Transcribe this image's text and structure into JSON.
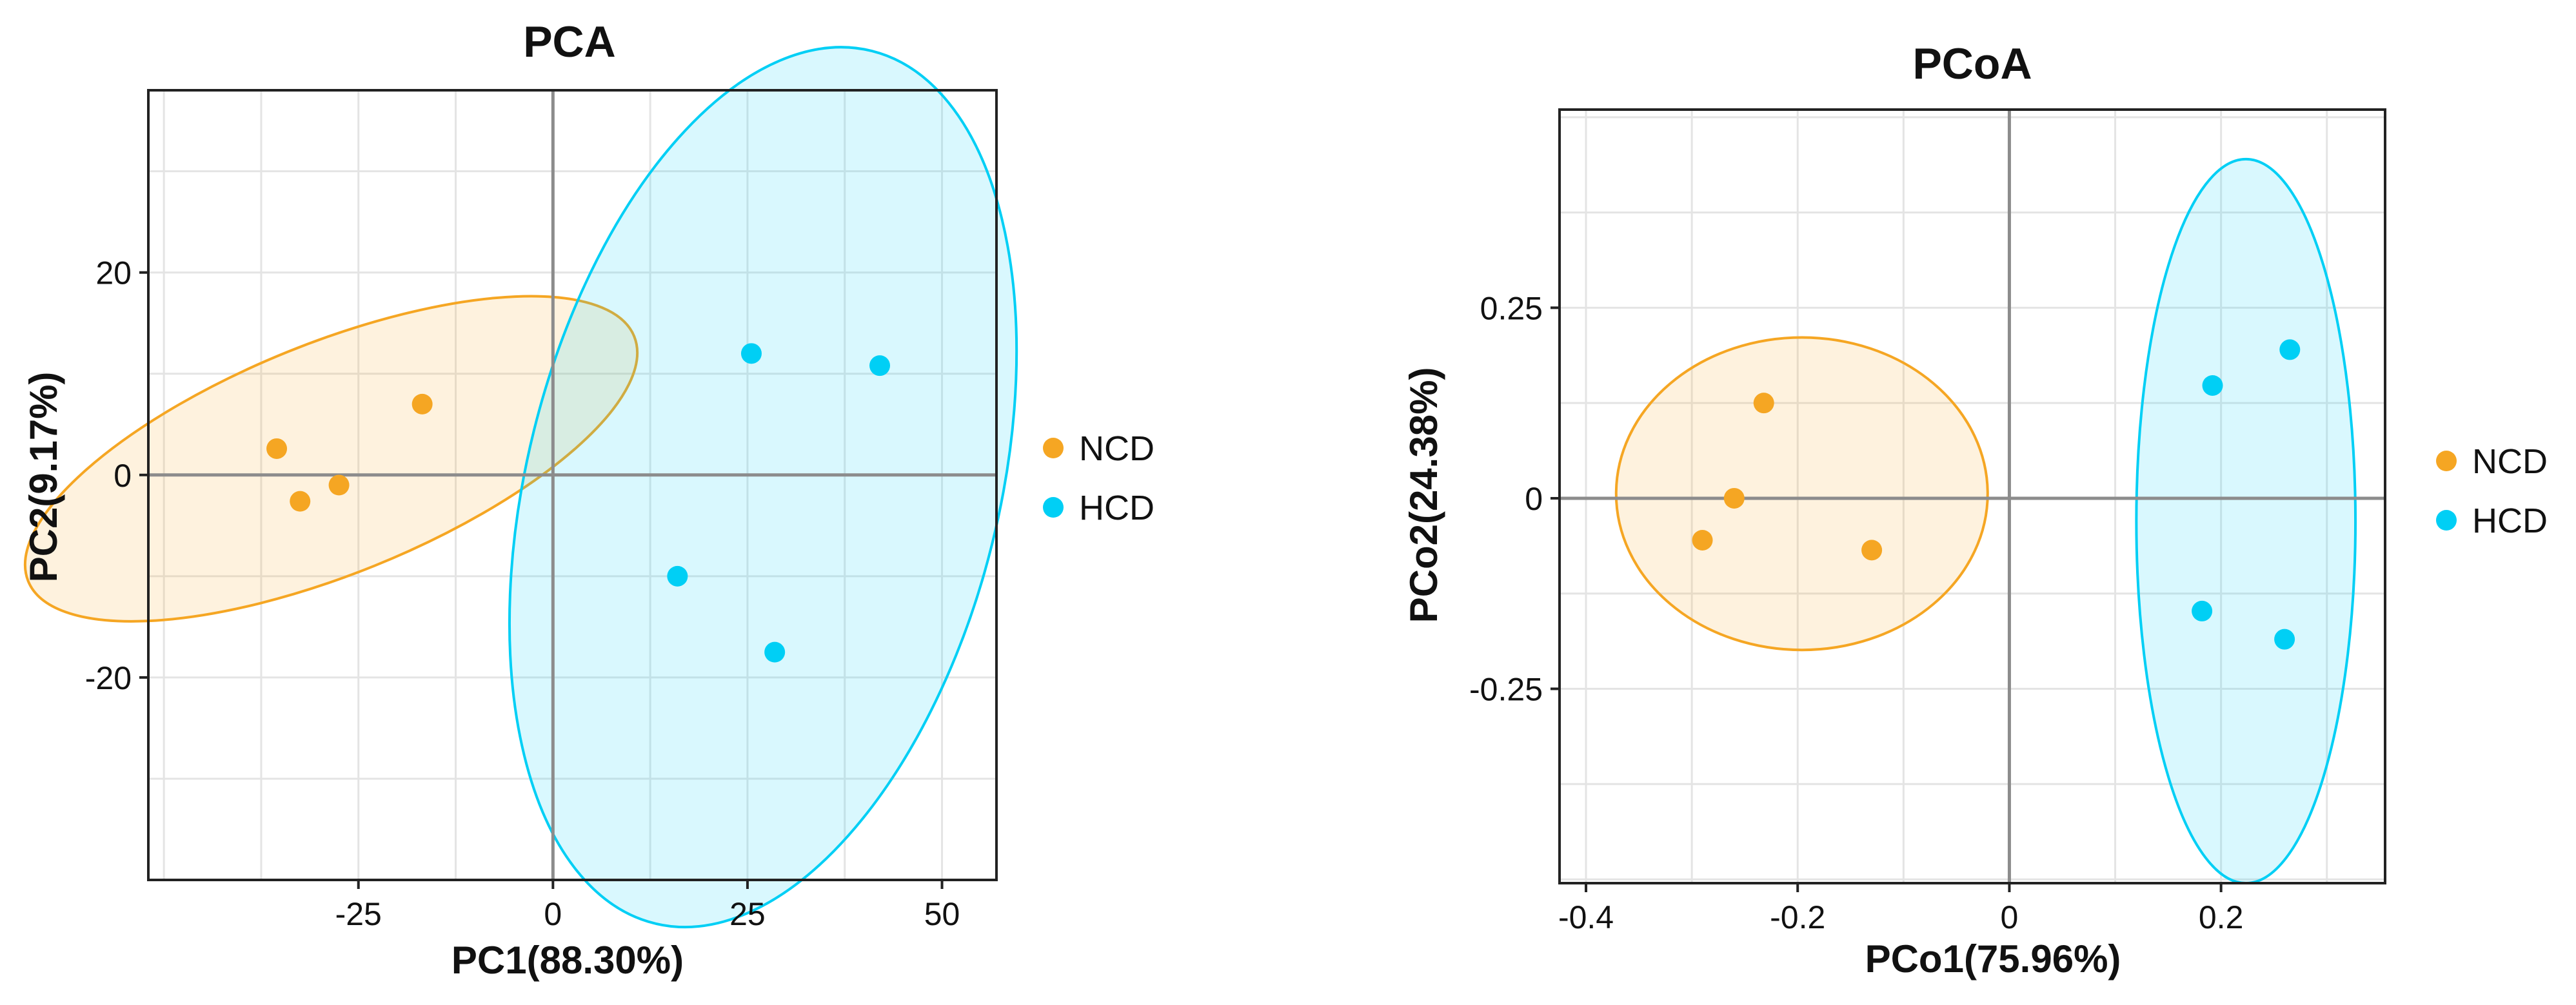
{
  "chart_data": [
    {
      "type": "scatter",
      "title": "PCA",
      "xlabel": "PC1(88.30%)",
      "ylabel": "PC2(9.17%)",
      "xlim": [
        -52,
        57
      ],
      "ylim": [
        -40,
        38
      ],
      "xticks": [
        -25,
        0,
        25,
        50
      ],
      "xtick_labels": [
        "-25",
        "0",
        "25",
        "50"
      ],
      "yticks": [
        -20,
        0,
        20
      ],
      "ytick_labels": [
        "-20",
        "0",
        "20"
      ],
      "grid": true,
      "legend_position": "right",
      "series": [
        {
          "name": "NCD",
          "color": "#F5A623",
          "points": [
            [
              -35.5,
              2.6
            ],
            [
              -32.5,
              -2.6
            ],
            [
              -27.5,
              -1.0
            ],
            [
              -16.8,
              7.0
            ]
          ],
          "ellipse": {
            "cx": -28.5,
            "cy": 1.6,
            "rx": 42.0,
            "ry": 11.4,
            "angle_deg": 22.0
          }
        },
        {
          "name": "HCD",
          "color": "#00CFF5",
          "points": [
            [
              25.5,
              12.0
            ],
            [
              42.0,
              10.8
            ],
            [
              16.0,
              -10.0
            ],
            [
              28.5,
              -17.5
            ]
          ],
          "ellipse": {
            "cx": 27.0,
            "cy": -1.2,
            "rx": 57.8,
            "ry": 23.3,
            "angle_deg": 76.0
          }
        }
      ]
    },
    {
      "type": "scatter",
      "title": "PCoA",
      "xlabel": "PCo1(75.96%)",
      "ylabel": "PCo2(24.38%)",
      "xlim": [
        -0.425,
        0.355
      ],
      "ylim": [
        -0.505,
        0.51
      ],
      "xticks": [
        -0.4,
        -0.2,
        0,
        0.2
      ],
      "xtick_labels": [
        "-0.4",
        "-0.2",
        "0",
        "0.2"
      ],
      "yticks": [
        -0.25,
        0,
        0.25
      ],
      "ytick_labels": [
        "-0.25",
        "0",
        "0.25"
      ],
      "grid": true,
      "legend_position": "right",
      "series": [
        {
          "name": "NCD",
          "color": "#F5A623",
          "points": [
            [
              -0.232,
              0.125
            ],
            [
              -0.26,
              0.0
            ],
            [
              -0.29,
              -0.055
            ],
            [
              -0.13,
              -0.068
            ]
          ],
          "ellipse": {
            "cx": -0.196,
            "cy": 0.006,
            "rx": 0.1755,
            "ry": 0.205,
            "angle_deg": 0
          }
        },
        {
          "name": "HCD",
          "color": "#00CFF5",
          "points": [
            [
              0.192,
              0.148
            ],
            [
              0.265,
              0.195
            ],
            [
              0.182,
              -0.148
            ],
            [
              0.26,
              -0.185
            ]
          ],
          "ellipse": {
            "cx": 0.2235,
            "cy": -0.03,
            "rx": 0.1035,
            "ry": 0.475,
            "angle_deg": 0
          }
        }
      ]
    }
  ]
}
